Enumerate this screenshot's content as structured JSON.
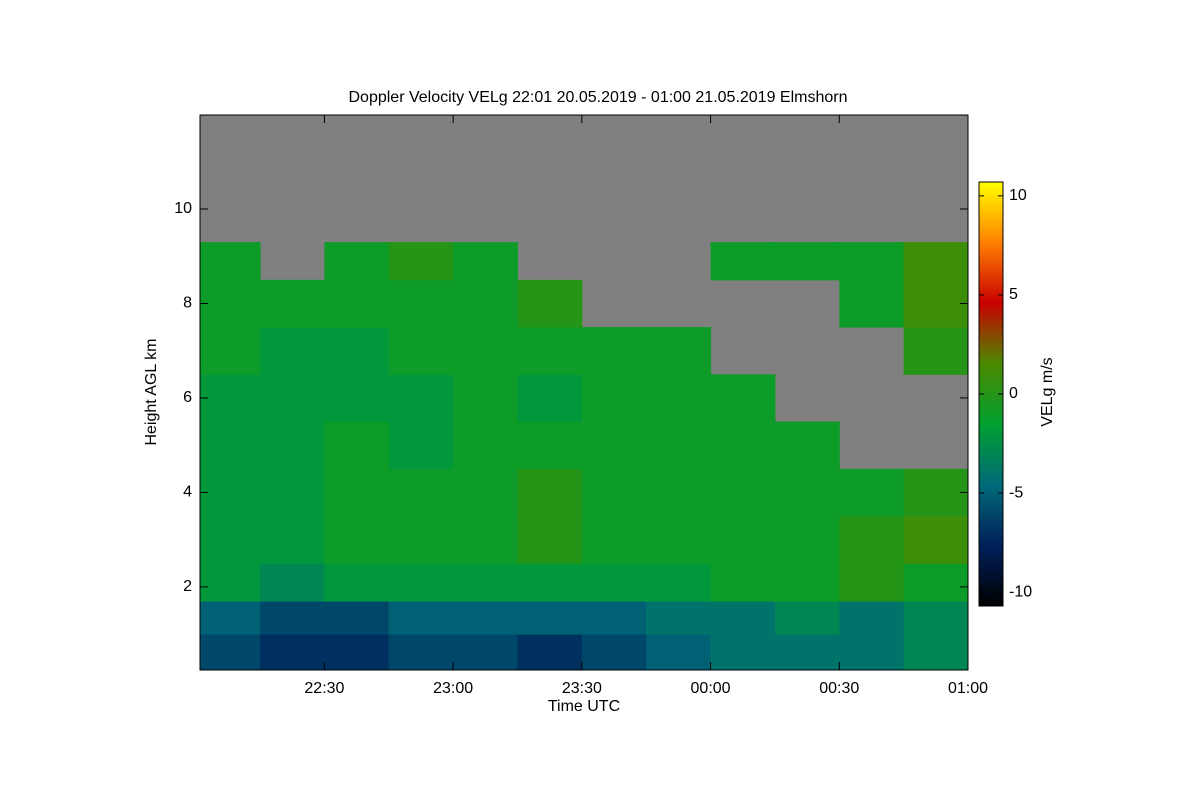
{
  "chart_data": {
    "type": "heatmap",
    "title": "Doppler Velocity VELg   22:01 20.05.2019 - 01:00 21.05.2019 Elmshorn",
    "xlabel": "Time UTC",
    "ylabel": "Height AGL km",
    "colorbar_label": "VELg m/s",
    "xlim": [
      1,
      180
    ],
    "xticks": [
      {
        "value": 30,
        "label": "22:30"
      },
      {
        "value": 60,
        "label": "23:00"
      },
      {
        "value": 90,
        "label": "23:30"
      },
      {
        "value": 120,
        "label": "00:00"
      },
      {
        "value": 150,
        "label": "00:30"
      },
      {
        "value": 180,
        "label": "01:00"
      }
    ],
    "ylim": [
      0.24,
      11.99
    ],
    "yticks": [
      2,
      4,
      6,
      8,
      10
    ],
    "zlim": [
      -10.7,
      10.7
    ],
    "zticks": [
      -10,
      -5,
      0,
      5,
      10
    ],
    "x_bins": [
      1,
      15,
      30,
      45,
      60,
      75,
      90,
      105,
      120,
      135,
      150,
      165,
      180
    ],
    "y_bins": [
      0.24,
      1,
      1.7,
      2.5,
      3.5,
      4.5,
      5.5,
      6.5,
      7.5,
      8.5,
      9.3
    ],
    "z": [
      [
        -6,
        -7,
        -7,
        -6,
        -6,
        -7,
        -6,
        -5,
        -4,
        -4,
        -4,
        -3
      ],
      [
        -5,
        -6,
        -6,
        -5,
        -5,
        -5,
        -5,
        -4,
        -4,
        -3,
        -4,
        -3
      ],
      [
        -2,
        -3,
        -2,
        -2,
        -2,
        -2,
        -2,
        -2,
        -1,
        -1,
        0,
        -1
      ],
      [
        -2,
        -2,
        -1,
        -1,
        -1,
        0,
        -1,
        -1,
        -1,
        -1,
        0,
        1
      ],
      [
        -2,
        -2,
        -1,
        -1,
        -1,
        0,
        -1,
        -1,
        -1,
        -1,
        -1,
        0
      ],
      [
        -2,
        -2,
        -1,
        -2,
        -1,
        -1,
        -1,
        -1,
        -1,
        -1,
        null,
        null
      ],
      [
        -2,
        -2,
        -2,
        -2,
        -1,
        -2,
        -1,
        -1,
        -1,
        null,
        null,
        null
      ],
      [
        -1,
        -2,
        -2,
        -1,
        -1,
        -1,
        -1,
        -1,
        null,
        null,
        null,
        0
      ],
      [
        -1,
        -1,
        -1,
        -1,
        -1,
        0,
        null,
        null,
        null,
        null,
        -1,
        1
      ],
      [
        -1,
        null,
        -1,
        0,
        -1,
        null,
        null,
        null,
        -1,
        -1,
        -1,
        1
      ]
    ],
    "colorscale": [
      "#000000",
      "#00205a",
      "#006a78",
      "#00a030",
      "#4a8a00",
      "#c80000",
      "#ff8000",
      "#ffff00"
    ],
    "nodata_color": "#808080"
  }
}
